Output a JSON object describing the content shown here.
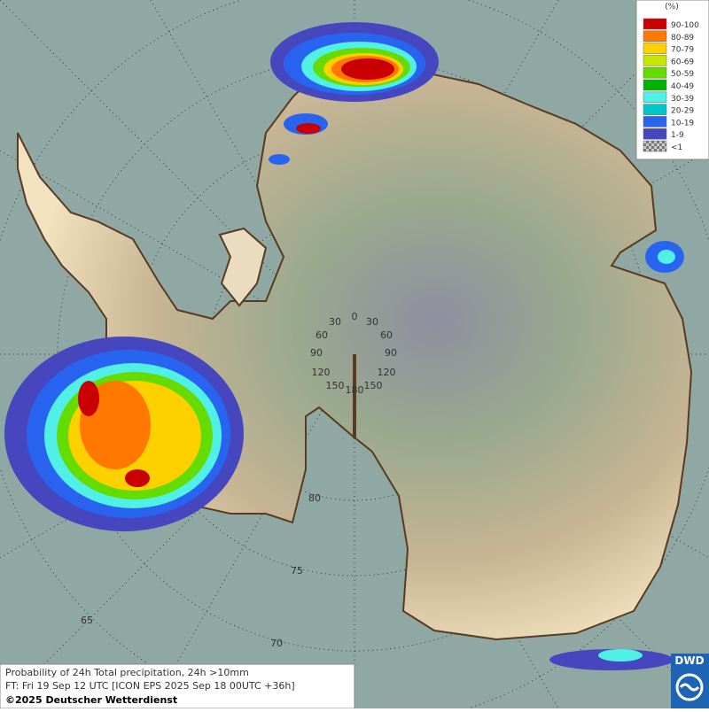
{
  "legend": {
    "title": "(%)",
    "entries": [
      {
        "label": "90-100",
        "color": "#c80000"
      },
      {
        "label": "80-89",
        "color": "#ff7800"
      },
      {
        "label": "70-79",
        "color": "#ffd000"
      },
      {
        "label": "60-69",
        "color": "#c8e600"
      },
      {
        "label": "50-59",
        "color": "#64dc00"
      },
      {
        "label": "40-49",
        "color": "#00b400"
      },
      {
        "label": "30-39",
        "color": "#50f0e6"
      },
      {
        "label": "20-29",
        "color": "#00c8c8"
      },
      {
        "label": "10-19",
        "color": "#2864f0"
      },
      {
        "label": "1-9",
        "color": "#4646be"
      },
      {
        "label": "<1",
        "color": "#a0a0a0"
      }
    ]
  },
  "map": {
    "longitude_labels": [
      "0",
      "30",
      "60",
      "90",
      "120",
      "150",
      "30",
      "60",
      "90",
      "120",
      "150",
      "180"
    ],
    "latitude_labels": [
      "80",
      "75",
      "70",
      "65"
    ]
  },
  "footer": {
    "lines": [
      "Probability of 24h Total precipitation, 24h >10mm",
      "FT: Fri 19 Sep 12 UTC [ICON EPS 2025 Sep 18 00UTC +36h]",
      "©2025 Deutscher Wetterdienst"
    ]
  },
  "logo": "DWD"
}
